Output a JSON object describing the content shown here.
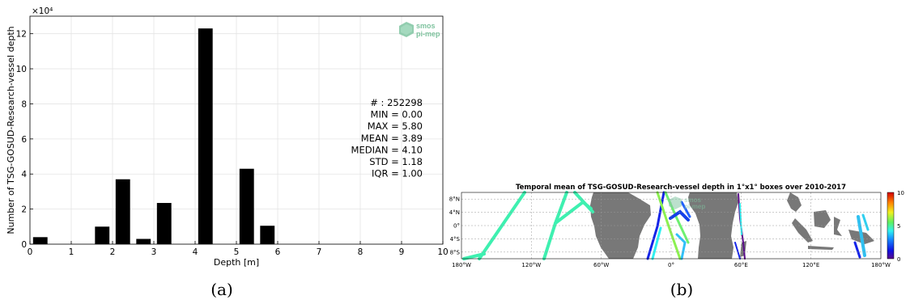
{
  "chart_data": [
    {
      "type": "bar",
      "ylabel": "Number of TSG-GOSUD-Research-vessel depth",
      "xlabel": "Depth [m]",
      "y_exponent_label": "×10⁴",
      "xlim": [
        0,
        10
      ],
      "ylim": [
        0,
        130000
      ],
      "x_ticks": [
        "0",
        "1",
        "2",
        "3",
        "4",
        "5",
        "6",
        "7",
        "8",
        "9",
        "10"
      ],
      "y_ticks": [
        "0",
        "2",
        "4",
        "6",
        "8",
        "10",
        "12"
      ],
      "bar_width": 0.35,
      "bars": [
        {
          "x": 0.25,
          "value": 4000
        },
        {
          "x": 1.75,
          "value": 10000
        },
        {
          "x": 2.25,
          "value": 37000
        },
        {
          "x": 2.75,
          "value": 3000
        },
        {
          "x": 3.25,
          "value": 23500
        },
        {
          "x": 4.25,
          "value": 123000
        },
        {
          "x": 5.25,
          "value": 43000
        },
        {
          "x": 5.75,
          "value": 10500
        }
      ],
      "stats": [
        "# : 252298",
        "MIN = 0.00",
        "MAX =  5.80",
        "MEAN = 3.89",
        "MEDIAN = 4.10",
        "STD = 1.18",
        "IQR = 1.00"
      ],
      "grid": true,
      "watermark": [
        "smos",
        "pi-mep"
      ]
    },
    {
      "type": "heatmap",
      "title": "Temporal mean of TSG-GOSUD-Research-vessel depth in 1°x1° boxes over 2010-2017",
      "x_ticks": [
        "180°W",
        "120°W",
        "60°W",
        "0°",
        "60°E",
        "120°E",
        "180°W"
      ],
      "y_ticks": [
        "8°N",
        "4°N",
        "0°",
        "4°S",
        "8°S"
      ],
      "colorbar_ticks": [
        "10",
        "5",
        "0"
      ],
      "colorbar_range": [
        0,
        10
      ],
      "grid": true
    }
  ],
  "captions": {
    "a": "(a)",
    "b": "(b)"
  }
}
